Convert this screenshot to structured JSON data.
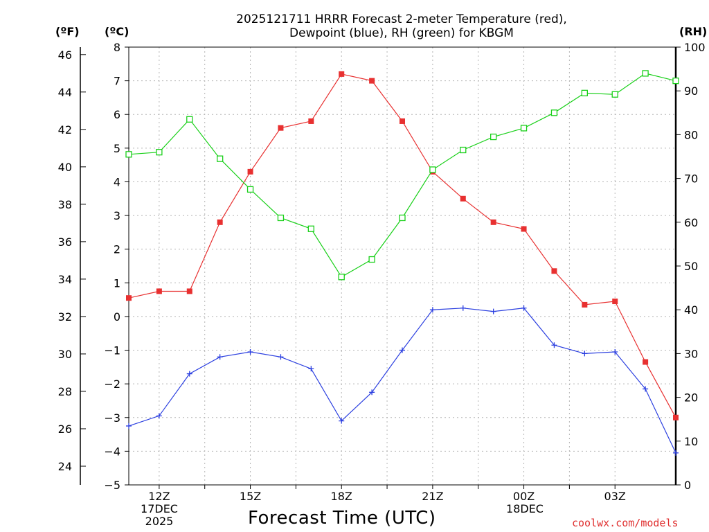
{
  "chart_data": {
    "type": "line",
    "title_line1": "2025121711 HRRR Forecast 2-meter Temperature (red),",
    "title_line2": "Dewpoint (blue), RH (green) for KBGM",
    "xlabel": "Forecast Time (UTC)",
    "unit_labels": {
      "fahrenheit": "(ºF)",
      "celsius": "(ºC)",
      "rh": "(RH)"
    },
    "credit": "coolwx.com/models",
    "x_hours": [
      11,
      12,
      13,
      14,
      15,
      16,
      17,
      18,
      19,
      20,
      21,
      22,
      23,
      24,
      25,
      26,
      27,
      28,
      29
    ],
    "x_ticks": [
      {
        "hour": 12,
        "label": "12Z",
        "sub1": "17DEC",
        "sub2": "2025"
      },
      {
        "hour": 15,
        "label": "15Z"
      },
      {
        "hour": 18,
        "label": "18Z"
      },
      {
        "hour": 21,
        "label": "21Z"
      },
      {
        "hour": 24,
        "label": "00Z",
        "sub1": "18DEC"
      },
      {
        "hour": 27,
        "label": "03Z"
      }
    ],
    "celsius_axis": {
      "min": -5,
      "max": 8,
      "ticks": [
        "8",
        "7",
        "6",
        "5",
        "4",
        "3",
        "2",
        "1",
        "0",
        "−1",
        "−2",
        "−3",
        "−4",
        "−5"
      ]
    },
    "fahrenheit_axis": {
      "ticks": [
        "46",
        "44",
        "42",
        "40",
        "38",
        "36",
        "34",
        "32",
        "30",
        "28",
        "26",
        "24"
      ]
    },
    "rh_axis": {
      "min": 0,
      "max": 100,
      "ticks": [
        "100",
        "90",
        "80",
        "70",
        "60",
        "50",
        "40",
        "30",
        "20",
        "10",
        "0"
      ]
    },
    "series": [
      {
        "name": "Temperature",
        "axis": "celsius",
        "color": "#e83030",
        "marker": "filled-square",
        "values": [
          0.55,
          0.75,
          0.75,
          2.8,
          4.3,
          5.6,
          5.8,
          7.2,
          7.0,
          5.8,
          4.3,
          3.5,
          2.8,
          2.6,
          1.35,
          0.35,
          0.45,
          -1.35,
          -3.0
        ]
      },
      {
        "name": "Dewpoint",
        "axis": "celsius",
        "color": "#2a3ee0",
        "marker": "plus",
        "values": [
          -3.25,
          -2.95,
          -1.7,
          -1.2,
          -1.05,
          -1.2,
          -1.55,
          -3.1,
          -2.25,
          -1.0,
          0.2,
          0.25,
          0.15,
          0.25,
          -0.85,
          -1.1,
          -1.05,
          -2.15,
          -4.05
        ]
      },
      {
        "name": "RH",
        "axis": "rh",
        "color": "#19d019",
        "marker": "open-square",
        "values": [
          75.5,
          76,
          83.5,
          74.5,
          67.5,
          61,
          58.5,
          47.5,
          51.5,
          61,
          72,
          76.5,
          79.5,
          81.5,
          85,
          89.5,
          89.2,
          94,
          92.3
        ]
      }
    ]
  }
}
